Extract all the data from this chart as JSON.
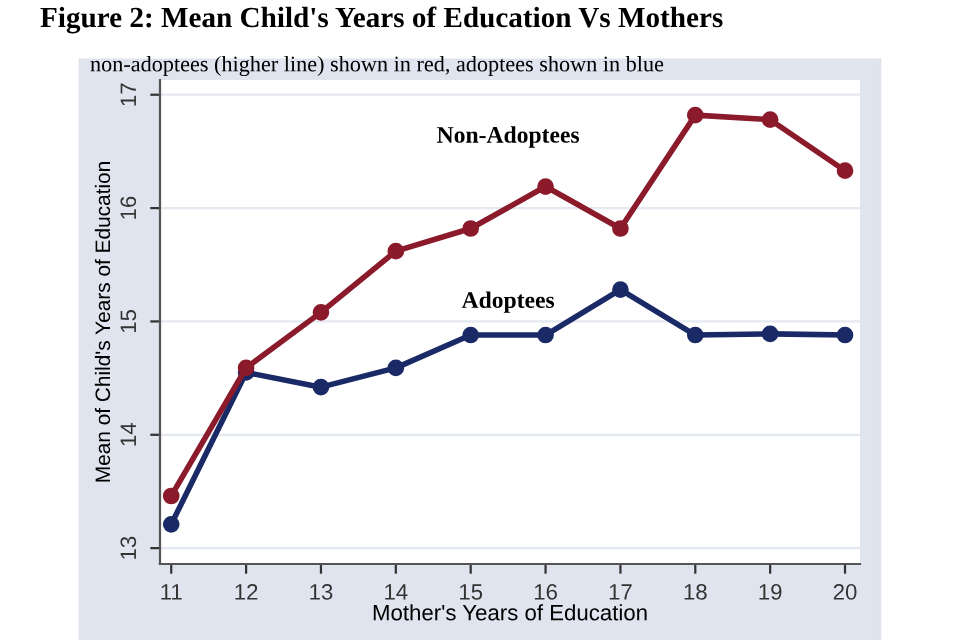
{
  "chart_data": {
    "type": "line",
    "title": "Figure 2: Mean Child's Years of Education Vs Mothers",
    "subtitle": "non-adoptees (higher line) shown in red, adoptees shown in blue",
    "xlabel": "Mother's Years of Education",
    "ylabel": "Mean of Child's Years of Education",
    "x": [
      11,
      12,
      13,
      14,
      15,
      16,
      17,
      18,
      19,
      20
    ],
    "series": [
      {
        "name": "Non-Adoptees",
        "color": "#8b1a2b",
        "values": [
          13.46,
          14.59,
          15.08,
          15.62,
          15.82,
          16.19,
          15.82,
          16.82,
          16.78,
          16.33
        ]
      },
      {
        "name": "Adoptees",
        "color": "#1a2a66",
        "values": [
          13.21,
          14.55,
          14.42,
          14.59,
          14.88,
          14.88,
          15.28,
          14.88,
          14.89,
          14.88
        ]
      }
    ],
    "xlim": [
      10.85,
      20.2
    ],
    "ylim": [
      12.86,
      17.13
    ],
    "xticks": [
      11,
      12,
      13,
      14,
      15,
      16,
      17,
      18,
      19,
      20
    ],
    "yticks": [
      13,
      14,
      15,
      16,
      17
    ],
    "grid": "y",
    "legend": false,
    "marker": "circle",
    "line_style": "solid"
  }
}
